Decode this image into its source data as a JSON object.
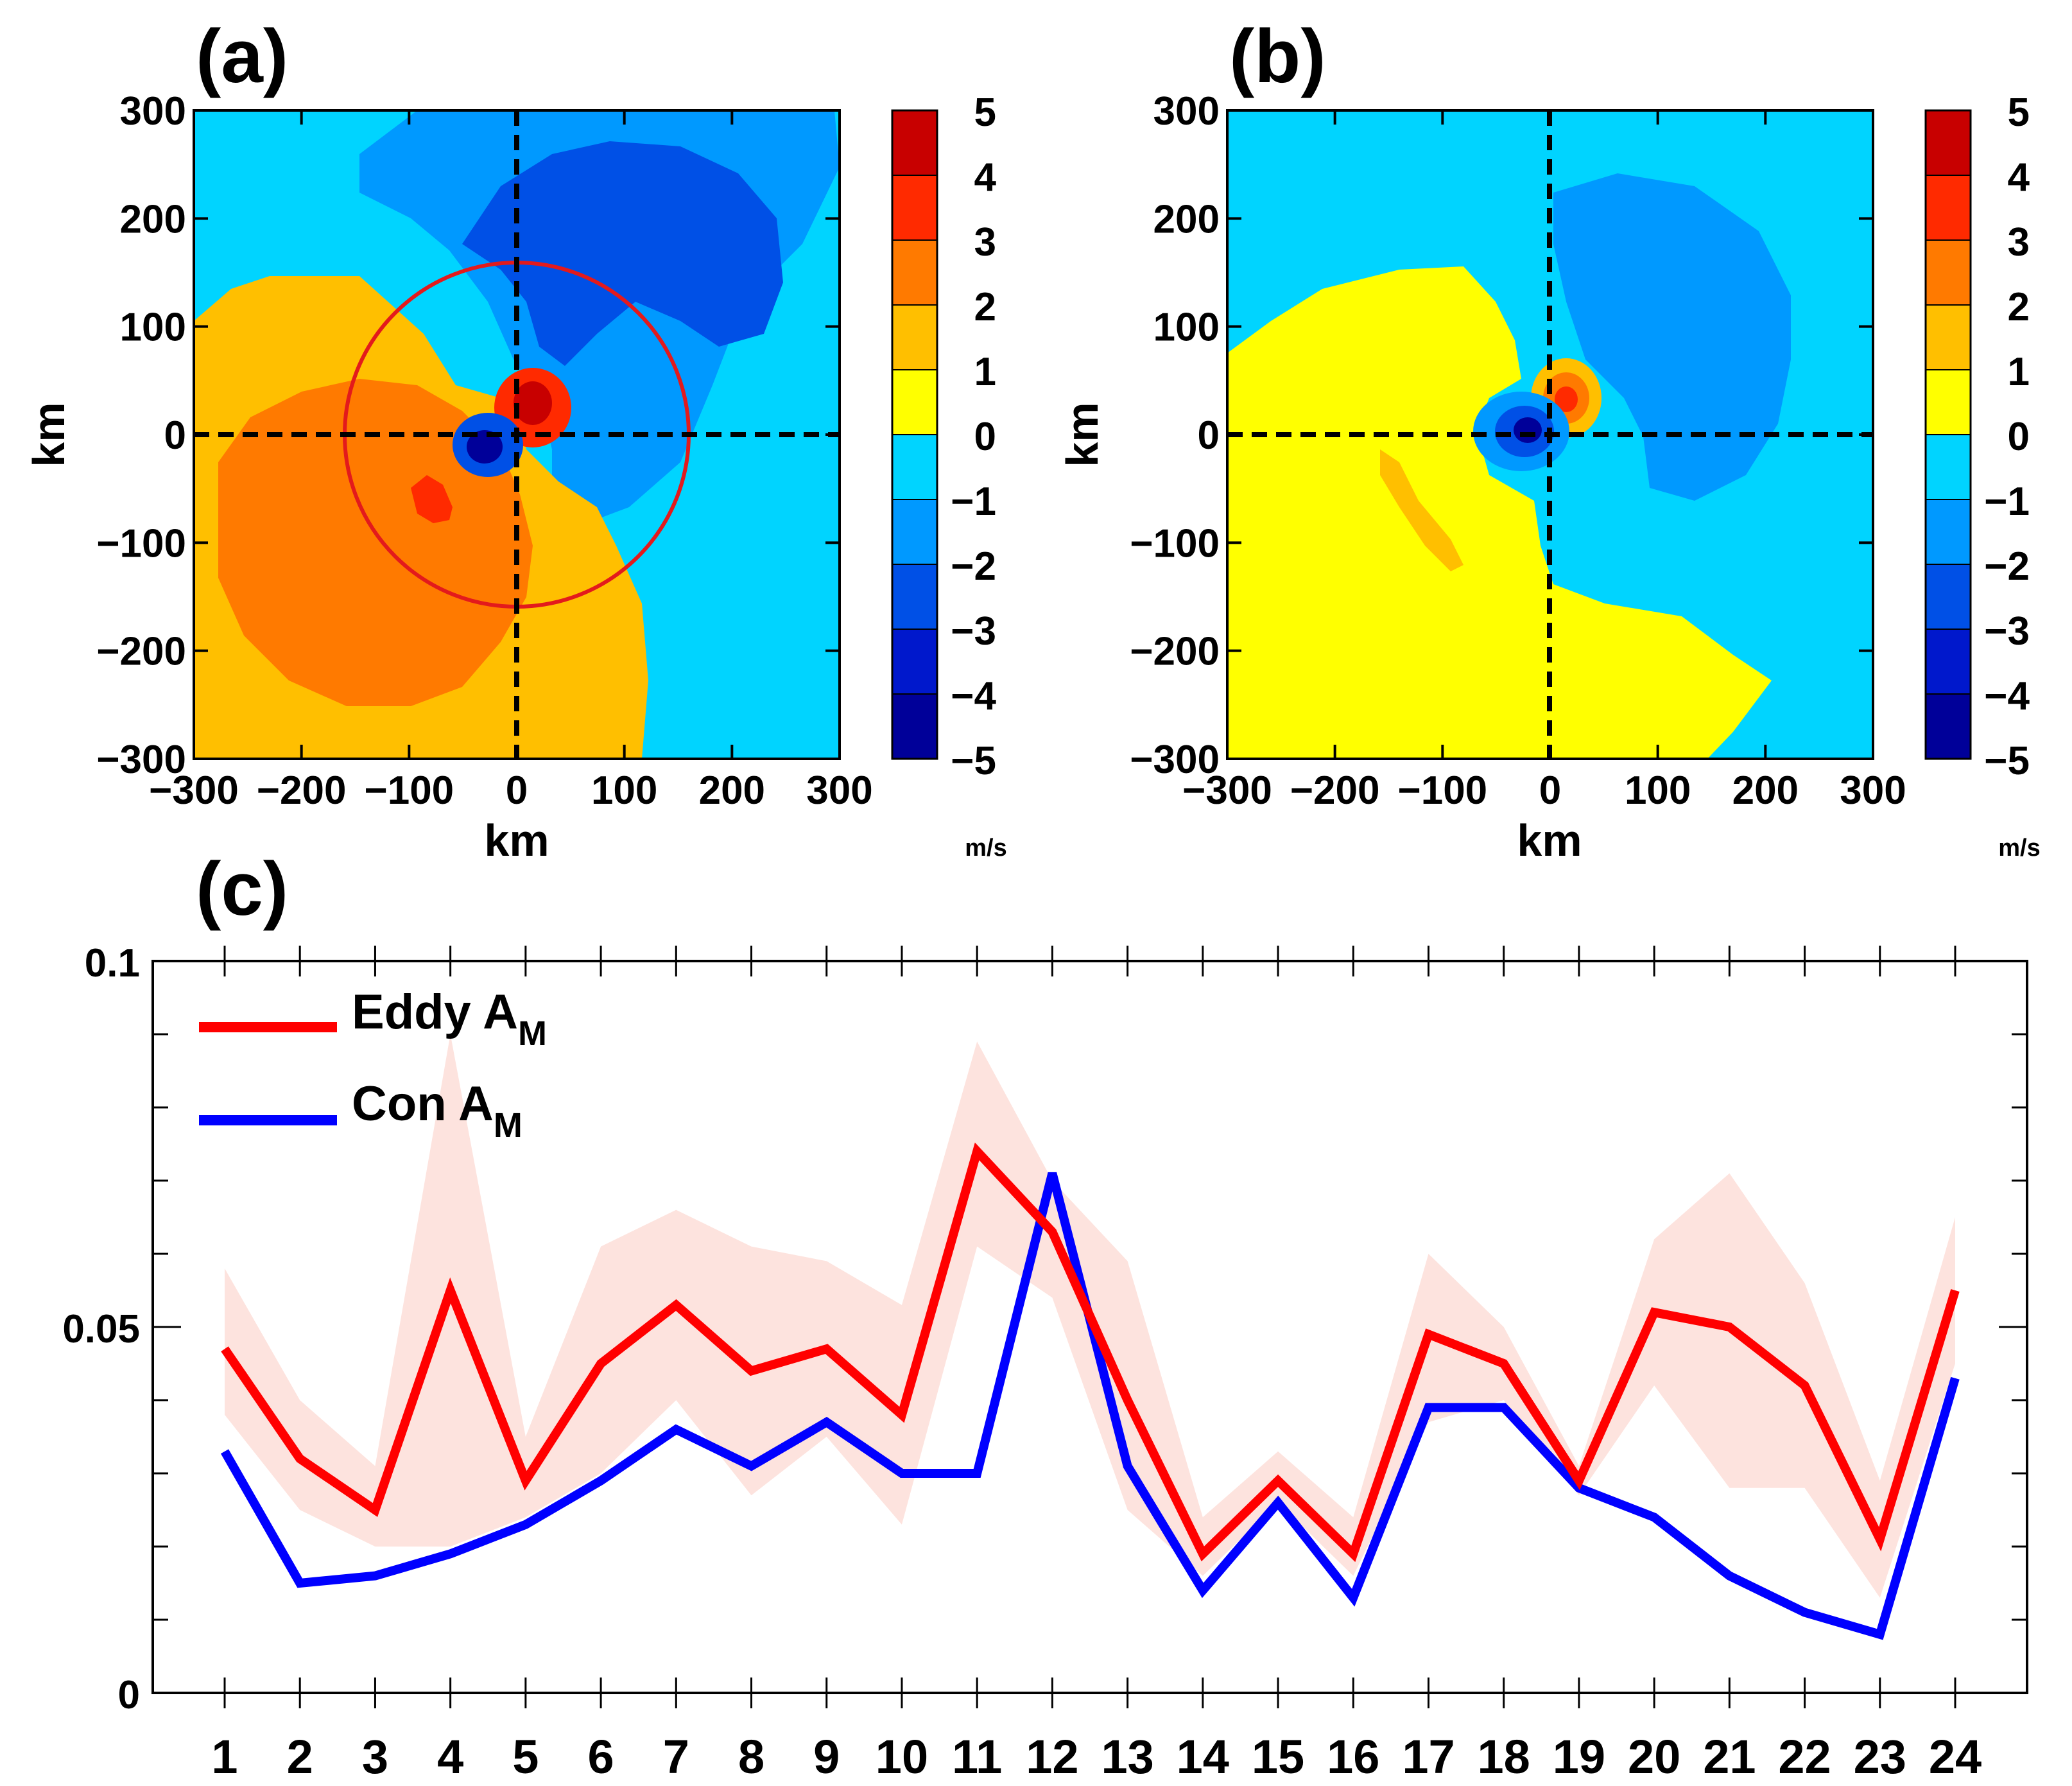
{
  "panels": {
    "a": {
      "label": "(a)",
      "xlabel": "km",
      "ylabel": "km",
      "ticks": [
        "−300",
        "−200",
        "−100",
        "0",
        "100",
        "200",
        "300"
      ],
      "colorbar": {
        "ticks": [
          "5",
          "4",
          "3",
          "2",
          "1",
          "0",
          "−1",
          "−2",
          "−3",
          "−4",
          "−5"
        ],
        "unit": "m/s"
      }
    },
    "b": {
      "label": "(b)",
      "xlabel": "km",
      "ylabel": "km",
      "ticks": [
        "−300",
        "−200",
        "−100",
        "0",
        "100",
        "200",
        "300"
      ],
      "colorbar": {
        "ticks": [
          "5",
          "4",
          "3",
          "2",
          "1",
          "0",
          "−1",
          "−2",
          "−3",
          "−4",
          "−5"
        ],
        "unit": "m/s"
      }
    },
    "c": {
      "label": "(c)"
    }
  },
  "colors": {
    "colorbar_levels": [
      "#c80000",
      "#ff2a00",
      "#ff7a00",
      "#ffbf00",
      "#ffff00",
      "#00d4ff",
      "#0099ff",
      "#0050e6",
      "#0018cc",
      "#000099"
    ],
    "eddy": "#ff0000",
    "con": "#0000ff",
    "band": "#fde3de",
    "circle": "#e31a1c"
  },
  "chart_data": [
    {
      "type": "heatmap",
      "panel": "a",
      "title": "(a)",
      "xlabel": "km",
      "ylabel": "km",
      "xlim": [
        -300,
        300
      ],
      "ylim": [
        -300,
        300
      ],
      "colorbar_range": [
        -5,
        5
      ],
      "colorbar_unit": "m/s",
      "annotations": [
        "dashed crosshair at x=0 and y=0",
        "red circle of radius ~160 km centered at origin"
      ]
    },
    {
      "type": "heatmap",
      "panel": "b",
      "title": "(b)",
      "xlabel": "km",
      "ylabel": "km",
      "xlim": [
        -300,
        300
      ],
      "ylim": [
        -300,
        300
      ],
      "colorbar_range": [
        -5,
        5
      ],
      "colorbar_unit": "m/s",
      "annotations": [
        "dashed crosshair at x=0 and y=0"
      ]
    },
    {
      "type": "line",
      "panel": "c",
      "title": "(c)",
      "x": [
        1,
        2,
        3,
        4,
        5,
        6,
        7,
        8,
        9,
        10,
        11,
        12,
        13,
        14,
        15,
        16,
        17,
        18,
        19,
        20,
        21,
        22,
        23,
        24
      ],
      "xticks": [
        "1",
        "2",
        "3",
        "4",
        "5",
        "6",
        "7",
        "8",
        "9",
        "10",
        "11",
        "12",
        "13",
        "14",
        "15",
        "16",
        "17",
        "18",
        "19",
        "20",
        "21",
        "22",
        "23",
        "24"
      ],
      "ylim": [
        0,
        0.1
      ],
      "yticks": [
        "0",
        "0.05",
        "0.1"
      ],
      "series": [
        {
          "name": "Eddy A",
          "subscript": "M",
          "values": [
            0.047,
            0.032,
            0.025,
            0.055,
            0.029,
            0.045,
            0.053,
            0.044,
            0.047,
            0.038,
            0.074,
            0.063,
            0.04,
            0.019,
            0.029,
            0.019,
            0.049,
            0.045,
            0.029,
            0.052,
            0.05,
            0.042,
            0.021,
            0.055
          ],
          "band_upper": [
            0.058,
            0.04,
            0.031,
            0.09,
            0.035,
            0.061,
            0.066,
            0.061,
            0.059,
            0.053,
            0.089,
            0.07,
            0.059,
            0.024,
            0.033,
            0.024,
            0.06,
            0.05,
            0.031,
            0.062,
            0.071,
            0.056,
            0.029,
            0.065
          ],
          "band_lower": [
            0.038,
            0.025,
            0.02,
            0.02,
            0.024,
            0.03,
            0.04,
            0.027,
            0.035,
            0.023,
            0.061,
            0.054,
            0.025,
            0.016,
            0.026,
            0.016,
            0.037,
            0.04,
            0.027,
            0.042,
            0.028,
            0.028,
            0.013,
            0.045
          ]
        },
        {
          "name": "Con A",
          "subscript": "M",
          "values": [
            0.033,
            0.015,
            0.016,
            0.019,
            0.023,
            0.029,
            0.036,
            0.031,
            0.037,
            0.03,
            0.03,
            0.071,
            0.031,
            0.014,
            0.026,
            0.013,
            0.039,
            0.039,
            0.028,
            0.024,
            0.016,
            0.011,
            0.008,
            0.043
          ]
        }
      ]
    }
  ]
}
